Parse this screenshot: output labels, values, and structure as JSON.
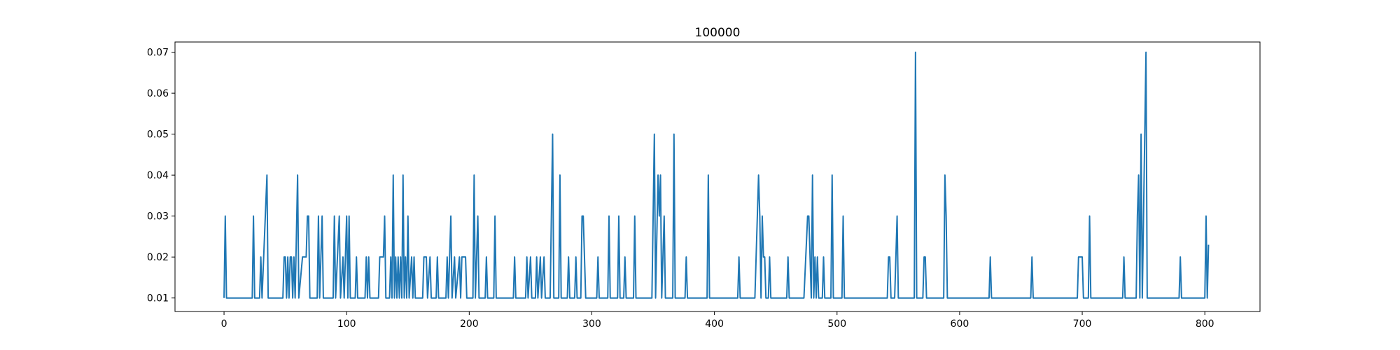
{
  "chart_data": {
    "type": "line",
    "title": "100000",
    "xlabel": "",
    "ylabel": "",
    "xlim": [
      -40,
      845
    ],
    "ylim": [
      0.0067,
      0.0725
    ],
    "xticks": [
      0,
      100,
      200,
      300,
      400,
      500,
      600,
      700,
      800
    ],
    "xtick_labels": [
      "0",
      "100",
      "200",
      "300",
      "400",
      "500",
      "600",
      "700",
      "800"
    ],
    "yticks": [
      0.01,
      0.02,
      0.03,
      0.04,
      0.05,
      0.06,
      0.07
    ],
    "ytick_labels": [
      "0.01",
      "0.02",
      "0.03",
      "0.04",
      "0.05",
      "0.06",
      "0.07"
    ],
    "grid": false,
    "series": [
      {
        "name": "100000",
        "color": "#1f77b4",
        "points": [
          [
            0,
            0.01
          ],
          [
            1,
            0.03
          ],
          [
            2,
            0.01
          ],
          [
            23,
            0.01
          ],
          [
            24,
            0.03
          ],
          [
            25,
            0.01
          ],
          [
            29,
            0.01
          ],
          [
            30,
            0.02
          ],
          [
            31,
            0.01
          ],
          [
            35,
            0.04
          ],
          [
            36,
            0.01
          ],
          [
            48,
            0.01
          ],
          [
            49,
            0.02
          ],
          [
            50,
            0.02
          ],
          [
            51,
            0.01
          ],
          [
            52,
            0.02
          ],
          [
            53,
            0.01
          ],
          [
            54,
            0.02
          ],
          [
            55,
            0.02
          ],
          [
            56,
            0.01
          ],
          [
            57,
            0.02
          ],
          [
            58,
            0.01
          ],
          [
            60,
            0.04
          ],
          [
            61,
            0.01
          ],
          [
            64,
            0.02
          ],
          [
            67,
            0.02
          ],
          [
            68,
            0.03
          ],
          [
            69,
            0.03
          ],
          [
            70,
            0.01
          ],
          [
            76,
            0.01
          ],
          [
            77,
            0.03
          ],
          [
            78,
            0.01
          ],
          [
            80,
            0.03
          ],
          [
            81,
            0.01
          ],
          [
            89,
            0.01
          ],
          [
            90,
            0.03
          ],
          [
            91,
            0.01
          ],
          [
            94,
            0.03
          ],
          [
            95,
            0.01
          ],
          [
            97,
            0.02
          ],
          [
            98,
            0.01
          ],
          [
            100,
            0.03
          ],
          [
            101,
            0.01
          ],
          [
            102,
            0.03
          ],
          [
            103,
            0.01
          ],
          [
            107,
            0.01
          ],
          [
            108,
            0.02
          ],
          [
            109,
            0.01
          ],
          [
            115,
            0.01
          ],
          [
            116,
            0.02
          ],
          [
            117,
            0.01
          ],
          [
            118,
            0.02
          ],
          [
            119,
            0.01
          ],
          [
            126,
            0.01
          ],
          [
            127,
            0.02
          ],
          [
            130,
            0.02
          ],
          [
            131,
            0.03
          ],
          [
            132,
            0.01
          ],
          [
            135,
            0.01
          ],
          [
            136,
            0.02
          ],
          [
            137,
            0.01
          ],
          [
            138,
            0.04
          ],
          [
            139,
            0.01
          ],
          [
            140,
            0.02
          ],
          [
            141,
            0.01
          ],
          [
            142,
            0.02
          ],
          [
            143,
            0.01
          ],
          [
            144,
            0.02
          ],
          [
            145,
            0.01
          ],
          [
            146,
            0.04
          ],
          [
            147,
            0.01
          ],
          [
            148,
            0.02
          ],
          [
            149,
            0.01
          ],
          [
            150,
            0.03
          ],
          [
            151,
            0.01
          ],
          [
            153,
            0.02
          ],
          [
            154,
            0.01
          ],
          [
            155,
            0.02
          ],
          [
            156,
            0.01
          ],
          [
            162,
            0.01
          ],
          [
            163,
            0.02
          ],
          [
            165,
            0.02
          ],
          [
            166,
            0.01
          ],
          [
            168,
            0.02
          ],
          [
            169,
            0.01
          ],
          [
            173,
            0.01
          ],
          [
            174,
            0.02
          ],
          [
            175,
            0.01
          ],
          [
            181,
            0.01
          ],
          [
            182,
            0.02
          ],
          [
            183,
            0.01
          ],
          [
            185,
            0.03
          ],
          [
            186,
            0.01
          ],
          [
            188,
            0.02
          ],
          [
            189,
            0.01
          ],
          [
            192,
            0.02
          ],
          [
            193,
            0.01
          ],
          [
            194,
            0.02
          ],
          [
            197,
            0.02
          ],
          [
            198,
            0.01
          ],
          [
            203,
            0.01
          ],
          [
            204,
            0.04
          ],
          [
            205,
            0.01
          ],
          [
            207,
            0.03
          ],
          [
            208,
            0.01
          ],
          [
            213,
            0.01
          ],
          [
            214,
            0.02
          ],
          [
            215,
            0.01
          ],
          [
            220,
            0.01
          ],
          [
            221,
            0.03
          ],
          [
            222,
            0.01
          ],
          [
            236,
            0.01
          ],
          [
            237,
            0.02
          ],
          [
            238,
            0.01
          ],
          [
            246,
            0.01
          ],
          [
            247,
            0.02
          ],
          [
            248,
            0.01
          ],
          [
            250,
            0.02
          ],
          [
            251,
            0.01
          ],
          [
            254,
            0.01
          ],
          [
            255,
            0.02
          ],
          [
            256,
            0.01
          ],
          [
            258,
            0.02
          ],
          [
            259,
            0.01
          ],
          [
            261,
            0.02
          ],
          [
            262,
            0.01
          ],
          [
            266,
            0.01
          ],
          [
            268,
            0.05
          ],
          [
            269,
            0.01
          ],
          [
            273,
            0.01
          ],
          [
            274,
            0.04
          ],
          [
            275,
            0.01
          ],
          [
            280,
            0.01
          ],
          [
            281,
            0.02
          ],
          [
            282,
            0.01
          ],
          [
            286,
            0.01
          ],
          [
            287,
            0.02
          ],
          [
            288,
            0.01
          ],
          [
            291,
            0.01
          ],
          [
            292,
            0.03
          ],
          [
            293,
            0.03
          ],
          [
            295,
            0.01
          ],
          [
            304,
            0.01
          ],
          [
            305,
            0.02
          ],
          [
            306,
            0.01
          ],
          [
            313,
            0.01
          ],
          [
            314,
            0.03
          ],
          [
            315,
            0.01
          ],
          [
            321,
            0.01
          ],
          [
            322,
            0.03
          ],
          [
            323,
            0.01
          ],
          [
            326,
            0.01
          ],
          [
            327,
            0.02
          ],
          [
            328,
            0.01
          ],
          [
            334,
            0.01
          ],
          [
            335,
            0.03
          ],
          [
            336,
            0.01
          ],
          [
            349,
            0.01
          ],
          [
            351,
            0.05
          ],
          [
            352,
            0.01
          ],
          [
            354,
            0.04
          ],
          [
            355,
            0.03
          ],
          [
            356,
            0.04
          ],
          [
            357,
            0.01
          ],
          [
            359,
            0.03
          ],
          [
            360,
            0.01
          ],
          [
            366,
            0.01
          ],
          [
            367,
            0.05
          ],
          [
            368,
            0.01
          ],
          [
            376,
            0.01
          ],
          [
            377,
            0.02
          ],
          [
            378,
            0.01
          ],
          [
            394,
            0.01
          ],
          [
            395,
            0.04
          ],
          [
            396,
            0.01
          ],
          [
            419,
            0.01
          ],
          [
            420,
            0.02
          ],
          [
            421,
            0.01
          ],
          [
            433,
            0.01
          ],
          [
            435,
            0.03
          ],
          [
            436,
            0.04
          ],
          [
            437,
            0.03
          ],
          [
            438,
            0.01
          ],
          [
            439,
            0.03
          ],
          [
            440,
            0.02
          ],
          [
            441,
            0.02
          ],
          [
            442,
            0.01
          ],
          [
            444,
            0.01
          ],
          [
            445,
            0.02
          ],
          [
            446,
            0.01
          ],
          [
            459,
            0.01
          ],
          [
            460,
            0.02
          ],
          [
            461,
            0.01
          ],
          [
            473,
            0.01
          ],
          [
            476,
            0.03
          ],
          [
            477,
            0.03
          ],
          [
            478,
            0.02
          ],
          [
            479,
            0.01
          ],
          [
            480,
            0.04
          ],
          [
            481,
            0.01
          ],
          [
            482,
            0.02
          ],
          [
            483,
            0.01
          ],
          [
            484,
            0.02
          ],
          [
            485,
            0.01
          ],
          [
            488,
            0.01
          ],
          [
            489,
            0.02
          ],
          [
            490,
            0.01
          ],
          [
            495,
            0.01
          ],
          [
            496,
            0.04
          ],
          [
            497,
            0.01
          ],
          [
            504,
            0.01
          ],
          [
            505,
            0.03
          ],
          [
            506,
            0.01
          ],
          [
            541,
            0.01
          ],
          [
            542,
            0.02
          ],
          [
            543,
            0.02
          ],
          [
            544,
            0.01
          ],
          [
            547,
            0.01
          ],
          [
            548,
            0.02
          ],
          [
            549,
            0.03
          ],
          [
            550,
            0.01
          ],
          [
            563,
            0.01
          ],
          [
            564,
            0.07
          ],
          [
            565,
            0.01
          ],
          [
            570,
            0.01
          ],
          [
            571,
            0.02
          ],
          [
            572,
            0.02
          ],
          [
            573,
            0.01
          ],
          [
            587,
            0.01
          ],
          [
            588,
            0.04
          ],
          [
            589,
            0.03
          ],
          [
            590,
            0.01
          ],
          [
            624,
            0.01
          ],
          [
            625,
            0.02
          ],
          [
            626,
            0.01
          ],
          [
            658,
            0.01
          ],
          [
            659,
            0.02
          ],
          [
            660,
            0.01
          ],
          [
            696,
            0.01
          ],
          [
            697,
            0.02
          ],
          [
            700,
            0.02
          ],
          [
            701,
            0.01
          ],
          [
            705,
            0.01
          ],
          [
            706,
            0.03
          ],
          [
            707,
            0.01
          ],
          [
            733,
            0.01
          ],
          [
            734,
            0.02
          ],
          [
            735,
            0.01
          ],
          [
            744,
            0.01
          ],
          [
            745,
            0.03
          ],
          [
            746,
            0.04
          ],
          [
            747,
            0.01
          ],
          [
            748,
            0.05
          ],
          [
            749,
            0.01
          ],
          [
            750,
            0.03
          ],
          [
            752,
            0.07
          ],
          [
            753,
            0.01
          ],
          [
            779,
            0.01
          ],
          [
            780,
            0.02
          ],
          [
            781,
            0.01
          ],
          [
            800,
            0.01
          ],
          [
            801,
            0.03
          ],
          [
            802,
            0.01
          ],
          [
            803,
            0.023
          ]
        ]
      }
    ]
  }
}
